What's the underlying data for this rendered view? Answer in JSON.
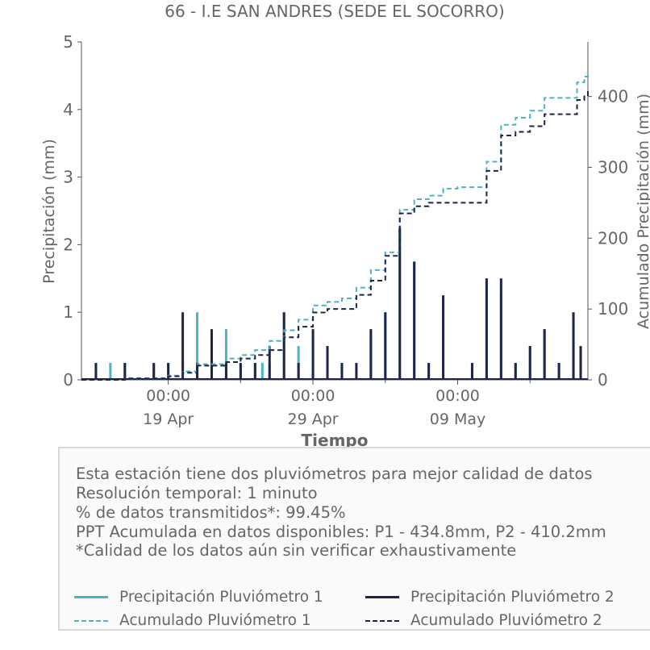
{
  "chart_data": {
    "type": "line",
    "title": "66 - I.E SAN ANDRES (SEDE EL SOCORRO)",
    "xlabel": "Tiempo",
    "ylabel_left": "Precipitación (mm)",
    "ylabel_right": "Acumulado Precipitación (mm)",
    "ylim_left": [
      0,
      5
    ],
    "ylim_right": [
      0,
      477
    ],
    "yticks_left": [
      "0",
      "1",
      "2",
      "3",
      "4",
      "5"
    ],
    "yticks_right": [
      "0",
      "100",
      "200",
      "300",
      "400"
    ],
    "xlim": [
      "2024-04-13",
      "2024-05-18"
    ],
    "xticks": [
      {
        "date": "2024-04-19",
        "time": "00:00",
        "label": "19 Apr"
      },
      {
        "date": "2024-04-24",
        "time": "00:00",
        "label": ""
      },
      {
        "date": "2024-04-29",
        "time": "00:00",
        "label": "29 Apr"
      },
      {
        "date": "2024-05-04",
        "time": "00:00",
        "label": ""
      },
      {
        "date": "2024-05-09",
        "time": "00:00",
        "label": "09 May"
      },
      {
        "date": "2024-05-14",
        "time": "00:00",
        "label": ""
      }
    ],
    "grid": false,
    "legend_position": "bottom",
    "series": [
      {
        "name": "Precipitación Pluviómetro 1",
        "color": "#4bb3c4",
        "style": "solid",
        "axis": "left",
        "points": [
          [
            "2024-04-14",
            0.25
          ],
          [
            "2024-04-15",
            0.25
          ],
          [
            "2024-04-16",
            0.25
          ],
          [
            "2024-04-18",
            0.25
          ],
          [
            "2024-04-19",
            0.25
          ],
          [
            "2024-04-20",
            0.25
          ],
          [
            "2024-04-21",
            1.0
          ],
          [
            "2024-04-22",
            0.25
          ],
          [
            "2024-04-23",
            0.75
          ],
          [
            "2024-04-24",
            0.25
          ],
          [
            "2024-04-25",
            0.25
          ],
          [
            "2024-04-25T12",
            0.25
          ],
          [
            "2024-04-26",
            0.25
          ],
          [
            "2024-04-27",
            1.0
          ],
          [
            "2024-04-28",
            0.5
          ],
          [
            "2024-04-29",
            0.75
          ],
          [
            "2024-04-30",
            0.5
          ],
          [
            "2024-05-01",
            0.25
          ],
          [
            "2024-05-03",
            0.75
          ],
          [
            "2024-05-04",
            1.0
          ],
          [
            "2024-05-05",
            2.25
          ],
          [
            "2024-05-06",
            1.75
          ],
          [
            "2024-05-07",
            0.25
          ],
          [
            "2024-05-08",
            1.25
          ],
          [
            "2024-05-10",
            0.25
          ],
          [
            "2024-05-11",
            1.5
          ],
          [
            "2024-05-12",
            1.25
          ],
          [
            "2024-05-13",
            0.25
          ],
          [
            "2024-05-14",
            0.5
          ],
          [
            "2024-05-15",
            0.75
          ],
          [
            "2024-05-16",
            0.25
          ],
          [
            "2024-05-17",
            1.0
          ],
          [
            "2024-05-17T12",
            0.5
          ]
        ]
      },
      {
        "name": "Precipitación Pluviómetro 2",
        "color": "#1f2448",
        "style": "solid",
        "axis": "left",
        "points": [
          [
            "2024-04-14",
            0.25
          ],
          [
            "2024-04-16",
            0.25
          ],
          [
            "2024-04-18",
            0.25
          ],
          [
            "2024-04-19",
            0.25
          ],
          [
            "2024-04-20",
            1.0
          ],
          [
            "2024-04-21",
            0.25
          ],
          [
            "2024-04-22",
            0.75
          ],
          [
            "2024-04-23",
            0.25
          ],
          [
            "2024-04-24",
            0.25
          ],
          [
            "2024-04-25",
            0.25
          ],
          [
            "2024-04-26",
            0.5
          ],
          [
            "2024-04-27",
            1.0
          ],
          [
            "2024-04-28",
            0.25
          ],
          [
            "2024-04-29",
            0.75
          ],
          [
            "2024-04-30",
            0.5
          ],
          [
            "2024-05-01",
            0.25
          ],
          [
            "2024-05-02",
            0.25
          ],
          [
            "2024-05-03",
            0.75
          ],
          [
            "2024-05-04",
            1.0
          ],
          [
            "2024-05-05",
            2.25
          ],
          [
            "2024-05-06",
            1.75
          ],
          [
            "2024-05-07",
            0.25
          ],
          [
            "2024-05-08",
            1.25
          ],
          [
            "2024-05-10",
            0.25
          ],
          [
            "2024-05-11",
            1.5
          ],
          [
            "2024-05-12",
            1.5
          ],
          [
            "2024-05-13",
            0.25
          ],
          [
            "2024-05-14",
            0.5
          ],
          [
            "2024-05-15",
            0.75
          ],
          [
            "2024-05-16",
            0.25
          ],
          [
            "2024-05-17",
            1.0
          ],
          [
            "2024-05-17T12",
            0.5
          ]
        ]
      },
      {
        "name": "Acumulado Pluviómetro 1",
        "color": "#4bb3c4",
        "style": "dashed",
        "axis": "right",
        "points": [
          [
            "2024-04-13",
            0
          ],
          [
            "2024-04-16",
            2
          ],
          [
            "2024-04-19",
            6
          ],
          [
            "2024-04-20",
            12
          ],
          [
            "2024-04-21",
            22
          ],
          [
            "2024-04-23",
            30
          ],
          [
            "2024-04-24",
            35
          ],
          [
            "2024-04-25",
            42
          ],
          [
            "2024-04-26",
            55
          ],
          [
            "2024-04-27",
            70
          ],
          [
            "2024-04-28",
            85
          ],
          [
            "2024-04-29",
            105
          ],
          [
            "2024-04-30",
            110
          ],
          [
            "2024-05-01",
            115
          ],
          [
            "2024-05-02",
            130
          ],
          [
            "2024-05-03",
            155
          ],
          [
            "2024-05-04",
            180
          ],
          [
            "2024-05-05",
            240
          ],
          [
            "2024-05-06",
            255
          ],
          [
            "2024-05-07",
            260
          ],
          [
            "2024-05-08",
            270
          ],
          [
            "2024-05-09",
            272
          ],
          [
            "2024-05-10",
            272
          ],
          [
            "2024-05-11",
            308
          ],
          [
            "2024-05-12",
            360
          ],
          [
            "2024-05-13",
            370
          ],
          [
            "2024-05-14",
            380
          ],
          [
            "2024-05-15",
            398
          ],
          [
            "2024-05-16",
            398
          ],
          [
            "2024-05-17",
            398
          ],
          [
            "2024-05-17T06",
            420
          ],
          [
            "2024-05-17T18",
            428
          ],
          [
            "2024-05-18",
            435
          ]
        ]
      },
      {
        "name": "Acumulado Pluviómetro 2",
        "color": "#1f2448",
        "style": "dashed",
        "axis": "right",
        "points": [
          [
            "2024-04-13",
            0
          ],
          [
            "2024-04-16",
            2
          ],
          [
            "2024-04-19",
            5
          ],
          [
            "2024-04-20",
            10
          ],
          [
            "2024-04-21",
            20
          ],
          [
            "2024-04-23",
            25
          ],
          [
            "2024-04-24",
            30
          ],
          [
            "2024-04-25",
            35
          ],
          [
            "2024-04-26",
            42
          ],
          [
            "2024-04-27",
            60
          ],
          [
            "2024-04-28",
            75
          ],
          [
            "2024-04-29",
            95
          ],
          [
            "2024-04-30",
            100
          ],
          [
            "2024-05-01",
            100
          ],
          [
            "2024-05-02",
            120
          ],
          [
            "2024-05-03",
            140
          ],
          [
            "2024-05-04",
            175
          ],
          [
            "2024-05-05",
            235
          ],
          [
            "2024-05-06",
            245
          ],
          [
            "2024-05-07",
            250
          ],
          [
            "2024-05-08",
            250
          ],
          [
            "2024-05-09",
            250
          ],
          [
            "2024-05-10",
            250
          ],
          [
            "2024-05-11",
            295
          ],
          [
            "2024-05-12",
            345
          ],
          [
            "2024-05-13",
            350
          ],
          [
            "2024-05-14",
            358
          ],
          [
            "2024-05-15",
            375
          ],
          [
            "2024-05-16",
            375
          ],
          [
            "2024-05-17",
            375
          ],
          [
            "2024-05-17T06",
            395
          ],
          [
            "2024-05-17T18",
            400
          ],
          [
            "2024-05-18",
            410
          ]
        ]
      }
    ]
  },
  "info": {
    "line1": "Esta estación tiene dos pluviómetros para mejor calidad de datos",
    "line2": "Resolución temporal: 1 minuto",
    "line3": "% de datos transmitidos*: 99.45%",
    "line4": "PPT Acumulada en datos disponibles: P1 - 434.8mm, P2 - 410.2mm",
    "line5": "*Calidad de los datos aún sin verificar exhaustivamente"
  },
  "legend": [
    {
      "label": "Precipitación Pluviómetro 1",
      "color": "#4bb3c4",
      "style": "solid"
    },
    {
      "label": "Precipitación Pluviómetro 2",
      "color": "#1f2448",
      "style": "solid"
    },
    {
      "label": "Acumulado Pluviómetro 1",
      "color": "#4bb3c4",
      "style": "dashed"
    },
    {
      "label": "Acumulado Pluviómetro 2",
      "color": "#1f2448",
      "style": "dashed"
    }
  ]
}
